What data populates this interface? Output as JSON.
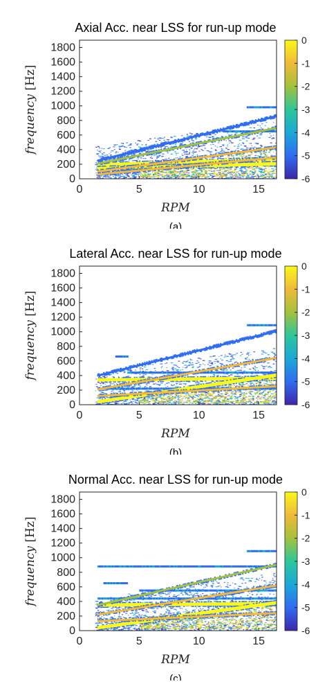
{
  "chart_data": [
    {
      "type": "heatmap",
      "panel": "(a)",
      "title": "Axial Acc. near LSS for run-up mode",
      "xlabel": "RPM",
      "ylabel": "frequency [Hz]",
      "xlim": [
        0,
        16.5
      ],
      "ylim": [
        0,
        1900
      ],
      "x_ticks": [
        "0",
        "5",
        "10",
        "15"
      ],
      "y_ticks": [
        "0",
        "200",
        "400",
        "600",
        "800",
        "1000",
        "1200",
        "1400",
        "1600",
        "1800"
      ],
      "colorbar": {
        "range": [
          -6,
          0
        ],
        "ticks": [
          "0",
          "-1",
          "-2",
          "-3",
          "-4",
          "-5",
          "-6"
        ],
        "colors": [
          "#3e26a8",
          "#2f6cf2",
          "#1ca8d6",
          "#2ec69a",
          "#a4c13d",
          "#f0b93a",
          "#f9f81a"
        ]
      },
      "harmonic_traces": [
        {
          "f_at_rpm_1_5": 190,
          "f_at_rpm_15": 260,
          "level": 0
        },
        {
          "f_at_rpm_1_5": 140,
          "f_at_rpm_15": 200,
          "level": 0
        },
        {
          "f_at_rpm_1_5": 100,
          "f_at_rpm_15": 400,
          "level": -1
        },
        {
          "f_at_rpm_1_5": 60,
          "f_at_rpm_15": 270,
          "level": -1
        },
        {
          "f_at_rpm_1_5": 210,
          "f_at_rpm_15": 650,
          "level": -2
        },
        {
          "f_at_rpm_1_5": 250,
          "f_at_rpm_15": 800,
          "level": -5
        }
      ],
      "horizontal_lines": [
        {
          "f": 650,
          "rpm_from": 12,
          "rpm_to": 16.5
        },
        {
          "f": 980,
          "rpm_from": 14,
          "rpm_to": 16.5
        }
      ]
    },
    {
      "type": "heatmap",
      "panel": "(b)",
      "title": "Lateral Acc. near LSS for run-up mode",
      "xlabel": "RPM",
      "ylabel": "frequency [Hz]",
      "xlim": [
        0,
        16.5
      ],
      "ylim": [
        0,
        1900
      ],
      "x_ticks": [
        "0",
        "5",
        "10",
        "15"
      ],
      "y_ticks": [
        "0",
        "200",
        "400",
        "600",
        "800",
        "1000",
        "1200",
        "1400",
        "1600",
        "1800"
      ],
      "colorbar": {
        "range": [
          -6,
          0
        ],
        "ticks": [
          "0",
          "-1",
          "-2",
          "-3",
          "-4",
          "-5",
          "-6"
        ],
        "colors": [
          "#3e26a8",
          "#2f6cf2",
          "#1ca8d6",
          "#2ec69a",
          "#a4c13d",
          "#f0b93a",
          "#f9f81a"
        ]
      },
      "harmonic_traces": [
        {
          "f_at_rpm_1_5": 340,
          "f_at_rpm_15": 360,
          "level": 0
        },
        {
          "f_at_rpm_1_5": 40,
          "f_at_rpm_15": 370,
          "level": 0
        },
        {
          "f_at_rpm_1_5": 210,
          "f_at_rpm_15": 600,
          "level": -1
        },
        {
          "f_at_rpm_1_5": 120,
          "f_at_rpm_15": 240,
          "level": -1
        },
        {
          "f_at_rpm_1_5": 400,
          "f_at_rpm_15": 950,
          "level": -5
        }
      ],
      "horizontal_lines": [
        {
          "f": 220,
          "rpm_from": 1.5,
          "rpm_to": 16.5
        },
        {
          "f": 440,
          "rpm_from": 4,
          "rpm_to": 16.5
        },
        {
          "f": 660,
          "rpm_from": 3,
          "rpm_to": 4
        },
        {
          "f": 1090,
          "rpm_from": 14,
          "rpm_to": 16.5
        }
      ]
    },
    {
      "type": "heatmap",
      "panel": "(c)",
      "title": "Normal Acc. near LSS for run-up mode",
      "xlabel": "RPM",
      "ylabel": "frequency [Hz]",
      "xlim": [
        0,
        16.5
      ],
      "ylim": [
        0,
        1900
      ],
      "x_ticks": [
        "0",
        "5",
        "10",
        "15"
      ],
      "y_ticks": [
        "0",
        "200",
        "400",
        "600",
        "800",
        "1000",
        "1200",
        "1400",
        "1600",
        "1800"
      ],
      "colorbar": {
        "range": [
          -6,
          0
        ],
        "ticks": [
          "0",
          "-1",
          "-2",
          "-3",
          "-4",
          "-5",
          "-6"
        ],
        "colors": [
          "#3e26a8",
          "#2f6cf2",
          "#1ca8d6",
          "#2ec69a",
          "#a4c13d",
          "#f0b93a",
          "#f9f81a"
        ]
      },
      "harmonic_traces": [
        {
          "f_at_rpm_1_5": 350,
          "f_at_rpm_15": 370,
          "level": 0
        },
        {
          "f_at_rpm_1_5": 40,
          "f_at_rpm_15": 350,
          "level": 0
        },
        {
          "f_at_rpm_1_5": 220,
          "f_at_rpm_15": 580,
          "level": -1
        },
        {
          "f_at_rpm_1_5": 130,
          "f_at_rpm_15": 230,
          "level": -1
        },
        {
          "f_at_rpm_1_5": 350,
          "f_at_rpm_15": 850,
          "level": -2
        }
      ],
      "horizontal_lines": [
        {
          "f": 350,
          "rpm_from": 1.5,
          "rpm_to": 16.5
        },
        {
          "f": 440,
          "rpm_from": 1.5,
          "rpm_to": 16.5
        },
        {
          "f": 550,
          "rpm_from": 5,
          "rpm_to": 16.5
        },
        {
          "f": 650,
          "rpm_from": 2,
          "rpm_to": 4
        },
        {
          "f": 880,
          "rpm_from": 1.5,
          "rpm_to": 16.5
        },
        {
          "f": 1090,
          "rpm_from": 14,
          "rpm_to": 16.5
        }
      ]
    }
  ]
}
